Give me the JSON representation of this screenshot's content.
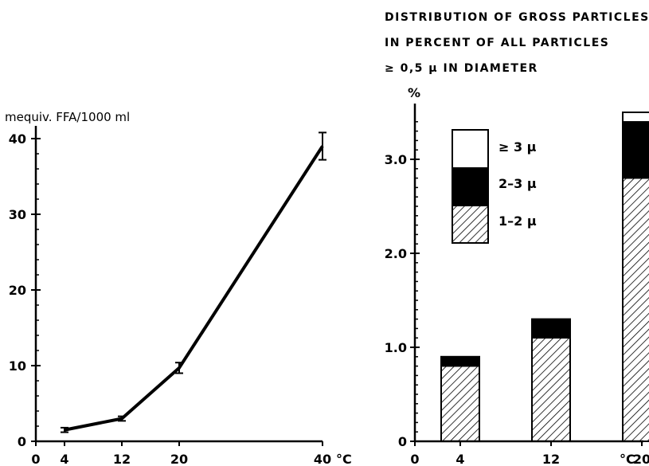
{
  "chart_data": [
    {
      "type": "line",
      "title": "",
      "ylabel": "mequiv. FFA/1000 ml",
      "xlabel": "",
      "x_unit": "°C",
      "x": [
        4,
        12,
        20,
        40
      ],
      "x_ticks": [
        "0",
        "4",
        "12",
        "20",
        "40"
      ],
      "y_ticks": [
        "0",
        "10",
        "20",
        "30",
        "40"
      ],
      "xlim": [
        0,
        40
      ],
      "ylim": [
        0,
        40
      ],
      "series": [
        {
          "values": [
            1.5,
            3.0,
            9.7,
            39.0
          ],
          "error": [
            0.3,
            0.3,
            0.7,
            1.8
          ]
        }
      ],
      "grid": false
    },
    {
      "type": "bar",
      "stacked": true,
      "title_lines": [
        "DISTRIBUTION OF GROSS PARTICLES",
        "IN PERCENT OF ALL PARTICLES",
        "≥ 0,5 μ  IN DIAMETER"
      ],
      "ylabel": "%",
      "x_unit": "°C",
      "x_ticks": [
        "0",
        "4",
        "12",
        "20"
      ],
      "y_ticks": [
        "0",
        "1.0",
        "2.0",
        "3.0"
      ],
      "ylim": [
        0,
        3.5
      ],
      "categories": [
        "4",
        "12",
        "20"
      ],
      "series": [
        {
          "name": "1–2 μ",
          "values": [
            0.8,
            1.1,
            2.8
          ],
          "fill": "hatch"
        },
        {
          "name": "2–3 μ",
          "values": [
            0.1,
            0.2,
            0.6
          ],
          "fill": "#000000"
        },
        {
          "name": "≥ 3 μ",
          "values": [
            0.0,
            0.0,
            0.1
          ],
          "fill": "#ffffff"
        }
      ],
      "legend_position": "top-left",
      "grid": false
    }
  ]
}
